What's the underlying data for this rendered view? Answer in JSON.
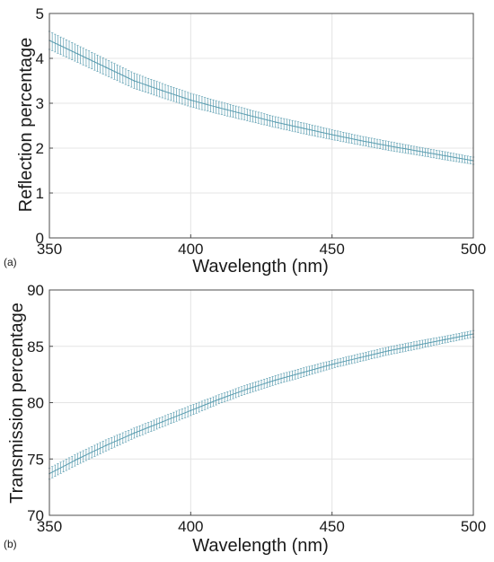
{
  "colors": {
    "series": "#5b9db0",
    "grid": "#e4e4e4",
    "axis": "#4d4d4d"
  },
  "chart_data": [
    {
      "type": "line",
      "panel_label": "(a)",
      "xlabel": "Wavelength (nm)",
      "ylabel": "Reflection percentage",
      "xlim": [
        350,
        500
      ],
      "ylim": [
        0,
        5
      ],
      "xticks": [
        "350",
        "400",
        "450",
        "500"
      ],
      "yticks": [
        "0",
        "1",
        "2",
        "3",
        "4",
        "5"
      ],
      "grid": true,
      "error_bars": true,
      "series": [
        {
          "x": [
            350,
            360,
            370,
            380,
            390,
            400,
            410,
            420,
            430,
            440,
            450,
            460,
            470,
            480,
            490,
            500
          ],
          "values": [
            4.4,
            4.1,
            3.8,
            3.5,
            3.28,
            3.07,
            2.9,
            2.74,
            2.58,
            2.44,
            2.3,
            2.17,
            2.05,
            1.94,
            1.83,
            1.72
          ],
          "error": [
            0.2,
            0.19,
            0.18,
            0.17,
            0.16,
            0.15,
            0.14,
            0.13,
            0.12,
            0.12,
            0.11,
            0.1,
            0.1,
            0.09,
            0.09,
            0.08
          ]
        }
      ]
    },
    {
      "type": "line",
      "panel_label": "(b)",
      "xlabel": "Wavelength (nm)",
      "ylabel": "Transmission percentage",
      "xlim": [
        350,
        500
      ],
      "ylim": [
        70,
        90
      ],
      "xticks": [
        "350",
        "400",
        "450",
        "500"
      ],
      "yticks": [
        "70",
        "75",
        "80",
        "85",
        "90"
      ],
      "grid": true,
      "error_bars": true,
      "series": [
        {
          "x": [
            350,
            360,
            370,
            380,
            390,
            400,
            410,
            420,
            430,
            440,
            450,
            460,
            470,
            480,
            490,
            500
          ],
          "values": [
            73.7,
            75.0,
            76.2,
            77.3,
            78.3,
            79.3,
            80.3,
            81.2,
            82.0,
            82.7,
            83.4,
            84.0,
            84.6,
            85.1,
            85.6,
            86.1
          ],
          "error": [
            0.5,
            0.5,
            0.5,
            0.45,
            0.45,
            0.45,
            0.4,
            0.4,
            0.4,
            0.4,
            0.35,
            0.35,
            0.35,
            0.35,
            0.3,
            0.3
          ]
        }
      ]
    }
  ]
}
